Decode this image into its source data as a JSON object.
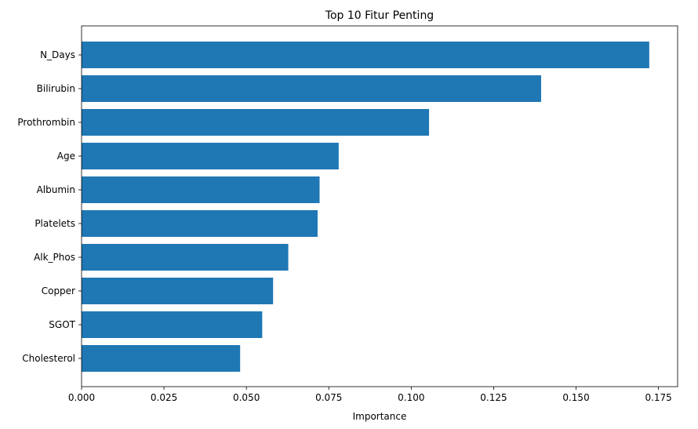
{
  "chart_data": {
    "type": "bar",
    "orientation": "horizontal",
    "title": "Top 10 Fitur Penting",
    "xlabel": "Importance",
    "ylabel": "",
    "categories": [
      "N_Days",
      "Bilirubin",
      "Prothrombin",
      "Age",
      "Albumin",
      "Platelets",
      "Alk_Phos",
      "Copper",
      "SGOT",
      "Cholesterol"
    ],
    "values": [
      0.1722,
      0.1394,
      0.1054,
      0.078,
      0.0722,
      0.0716,
      0.0627,
      0.0581,
      0.0548,
      0.0481
    ],
    "xlim": [
      0,
      0.1808
    ],
    "xticks": [
      "0.000",
      "0.025",
      "0.050",
      "0.075",
      "0.100",
      "0.125",
      "0.150",
      "0.175"
    ],
    "xtick_values": [
      0,
      0.025,
      0.05,
      0.075,
      0.1,
      0.125,
      0.15,
      0.175
    ],
    "grid": false,
    "legend": "none",
    "bar_color": "#1f77b4"
  }
}
